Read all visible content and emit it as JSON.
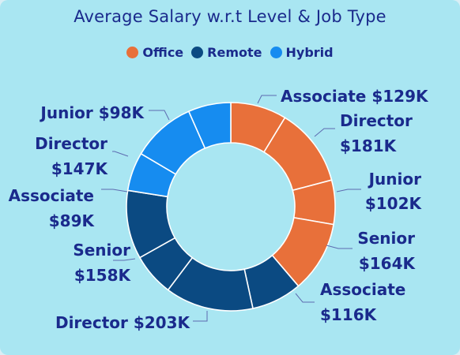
{
  "title": "Average Salary w.r.t Level & Job Type",
  "legend": [
    {
      "name": "Office",
      "color": "#e8703a"
    },
    {
      "name": "Remote",
      "color": "#0b4a82"
    },
    {
      "name": "Hybrid",
      "color": "#168cf0"
    }
  ],
  "chart_data": {
    "type": "pie",
    "donut": true,
    "title": "Average Salary w.r.t Level & Job Type",
    "series": [
      {
        "name": "Office",
        "color": "#e8703a",
        "slices": [
          {
            "level": "Associate",
            "value": 129,
            "label": "Associate $129K"
          },
          {
            "level": "Director",
            "value": 181,
            "label": "Director $181K"
          },
          {
            "level": "Junior",
            "value": 102,
            "label": "Junior $102K"
          },
          {
            "level": "Senior",
            "value": 164,
            "label": "Senior $164K"
          }
        ]
      },
      {
        "name": "Remote",
        "color": "#0b4a82",
        "slices": [
          {
            "level": "Associate",
            "value": 116,
            "label": "Associate $116K"
          },
          {
            "level": "Director",
            "value": 203,
            "label": "Director $203K"
          },
          {
            "level": "Junior",
            "value": 98,
            "label": ""
          },
          {
            "level": "Senior",
            "value": 158,
            "label": "Senior $158K"
          }
        ]
      },
      {
        "name": "Hybrid",
        "color": "#168cf0",
        "slices": [
          {
            "level": "Associate",
            "value": 89,
            "label": "Associate $89K"
          },
          {
            "level": "Director",
            "value": 147,
            "label": "Director $147K"
          },
          {
            "level": "Junior",
            "value": 98,
            "label": "Junior $98K"
          }
        ]
      }
    ]
  }
}
